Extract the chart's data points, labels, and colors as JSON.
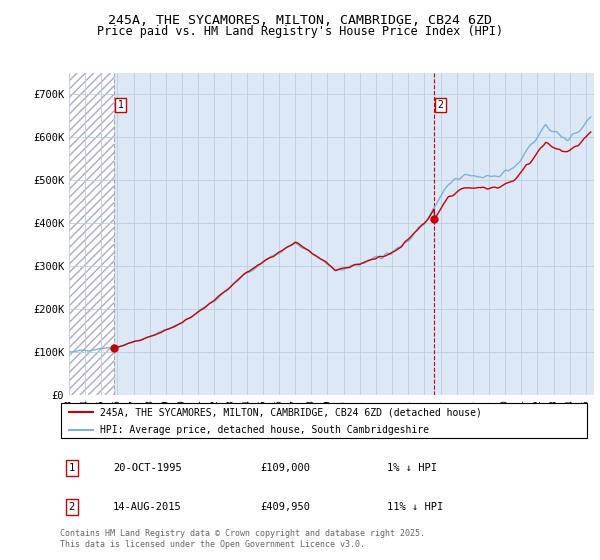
{
  "title_line1": "245A, THE SYCAMORES, MILTON, CAMBRIDGE, CB24 6ZD",
  "title_line2": "Price paid vs. HM Land Registry's House Price Index (HPI)",
  "ylim": [
    0,
    750000
  ],
  "yticks": [
    0,
    100000,
    200000,
    300000,
    400000,
    500000,
    600000,
    700000
  ],
  "ytick_labels": [
    "£0",
    "£100K",
    "£200K",
    "£300K",
    "£400K",
    "£500K",
    "£600K",
    "£700K"
  ],
  "sale1_date_label": "20-OCT-1995",
  "sale1_price": 109000,
  "sale1_price_label": "£109,000",
  "sale1_pct_label": "1% ↓ HPI",
  "sale1_year": 1995.8,
  "sale2_date_label": "14-AUG-2015",
  "sale2_price": 409950,
  "sale2_price_label": "£409,950",
  "sale2_pct_label": "11% ↓ HPI",
  "sale2_year": 2015.62,
  "legend_label1": "245A, THE SYCAMORES, MILTON, CAMBRIDGE, CB24 6ZD (detached house)",
  "legend_label2": "HPI: Average price, detached house, South Cambridgeshire",
  "footnote": "Contains HM Land Registry data © Crown copyright and database right 2025.\nThis data is licensed under the Open Government Licence v3.0.",
  "line_color_red": "#cc0000",
  "line_color_blue": "#7fb3d3",
  "vline1_color": "#999999",
  "vline2_color": "#cc0000",
  "marker_color": "#cc0000",
  "xmin": 1993,
  "xmax": 2025.5
}
